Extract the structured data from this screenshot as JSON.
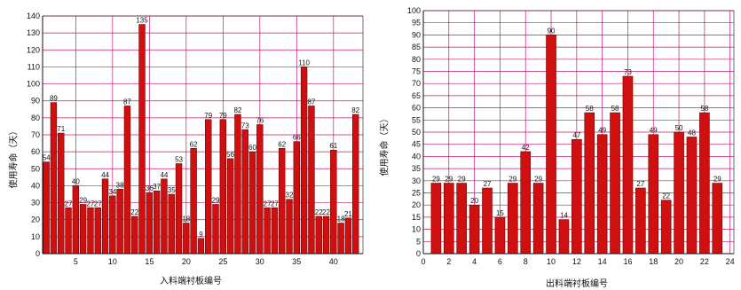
{
  "colors": {
    "bar": "#d01010",
    "bar_edge": "#6a0000",
    "grid": "#c21a6e",
    "axis": "#111111"
  },
  "chart_data": [
    {
      "type": "bar",
      "title": "",
      "xlabel": "入料端衬板编号",
      "ylabel": "使用寿命（天）",
      "ylim": [
        0,
        140
      ],
      "xlim": [
        0.5,
        44
      ],
      "yticks": [
        0,
        10,
        20,
        30,
        40,
        50,
        60,
        70,
        80,
        90,
        100,
        110,
        120,
        130,
        140
      ],
      "xticks": [
        5,
        10,
        15,
        20,
        25,
        30,
        35,
        40,
        45
      ],
      "grid": true,
      "x": [
        1,
        2,
        3,
        4,
        5,
        6,
        7,
        8,
        9,
        10,
        11,
        12,
        13,
        14,
        15,
        16,
        17,
        18,
        19,
        20,
        21,
        22,
        23,
        24,
        25,
        26,
        27,
        28,
        29,
        30,
        31,
        32,
        33,
        34,
        35,
        36,
        37,
        38,
        39,
        40,
        41,
        42,
        43
      ],
      "values": [
        54,
        89,
        71,
        27,
        40,
        29,
        27,
        27,
        44,
        34,
        38,
        87,
        22,
        135,
        36,
        37,
        44,
        35,
        53,
        18,
        62,
        9,
        79,
        29,
        79,
        56,
        82,
        73,
        60,
        76,
        27,
        27,
        62,
        32,
        66,
        110,
        87,
        22,
        22,
        61,
        18,
        21,
        82
      ],
      "data_labels": [
        "54",
        "89",
        "71",
        "27",
        "40",
        "29",
        "27",
        "27",
        "44",
        "34",
        "38",
        "87",
        "22",
        "135",
        "36",
        "37",
        "44",
        "35",
        "53",
        "18",
        "62",
        "9",
        "79",
        "29",
        "79",
        "56",
        "82",
        "73",
        "60",
        "76",
        "27",
        "27",
        "62",
        "32",
        "66",
        "110",
        "87",
        "22",
        "22",
        "61",
        "18",
        "21",
        "82"
      ]
    },
    {
      "type": "bar",
      "title": "",
      "xlabel": "出料端衬板编号",
      "ylabel": "使用寿命（天）",
      "ylim": [
        0,
        100
      ],
      "xlim": [
        0,
        24.3
      ],
      "yticks": [
        0,
        5,
        10,
        15,
        20,
        25,
        30,
        35,
        40,
        45,
        50,
        55,
        60,
        65,
        70,
        75,
        80,
        85,
        90,
        95,
        100
      ],
      "xticks": [
        0,
        2,
        4,
        6,
        8,
        10,
        12,
        14,
        16,
        18,
        20,
        22,
        24
      ],
      "grid": true,
      "x": [
        1,
        2,
        3,
        4,
        5,
        6,
        7,
        8,
        9,
        10,
        11,
        12,
        13,
        14,
        15,
        16,
        17,
        18,
        19,
        20,
        21,
        22,
        23
      ],
      "values": [
        29,
        29,
        29,
        20,
        27,
        15,
        29,
        42,
        29,
        90,
        14,
        47,
        58,
        49,
        58,
        73,
        27,
        49,
        22,
        50,
        48,
        58,
        29
      ],
      "data_labels": [
        "29",
        "29",
        "29",
        "20",
        "27",
        "15",
        "29",
        "42",
        "29",
        "90",
        "14",
        "47",
        "58",
        "49",
        "58",
        "73",
        "27",
        "49",
        "22",
        "50",
        "48",
        "58",
        "29"
      ]
    }
  ]
}
